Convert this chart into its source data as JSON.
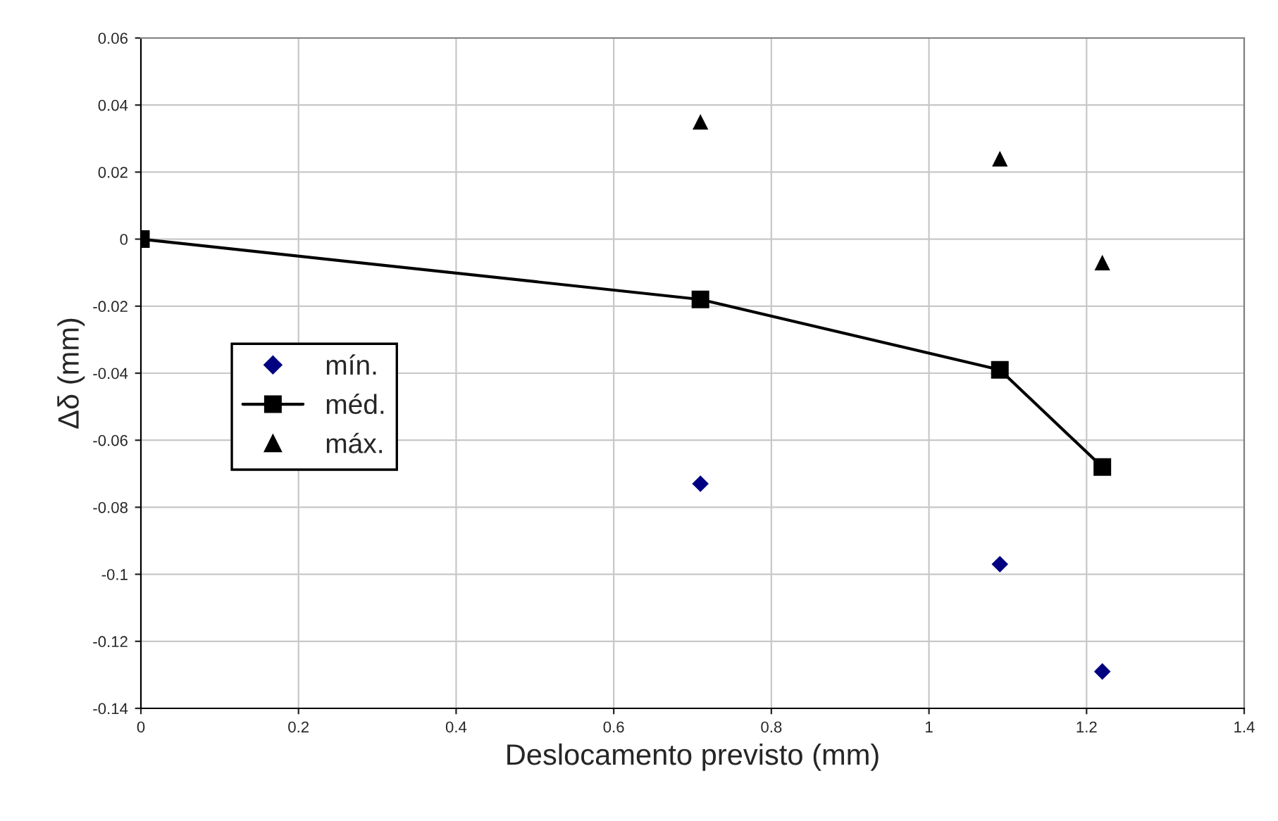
{
  "chart_data": {
    "type": "line",
    "xlabel": "Deslocamento previsto (mm)",
    "ylabel": "Δδ (mm)",
    "series": [
      {
        "name": "mín.",
        "type": "scatter",
        "marker": "diamond",
        "color": "#000080",
        "x": [
          0.71,
          1.09,
          1.22
        ],
        "values": [
          -0.073,
          -0.097,
          -0.129
        ]
      },
      {
        "name": "méd.",
        "marker": "square",
        "color": "#000000",
        "x": [
          0,
          0.71,
          1.09,
          1.22
        ],
        "values": [
          0,
          -0.018,
          -0.039,
          -0.068
        ]
      },
      {
        "name": "máx.",
        "type": "scatter",
        "marker": "triangle",
        "color": "#000000",
        "x": [
          0.71,
          1.09,
          1.22
        ],
        "values": [
          0.035,
          0.024,
          -0.007
        ]
      }
    ],
    "xlim": [
      0,
      1.4
    ],
    "xticks": [
      0,
      0.2,
      0.4,
      0.6,
      0.8,
      1,
      1.2,
      1.4
    ],
    "ylim": [
      -0.14,
      0.06
    ],
    "yticks": [
      -0.14,
      -0.12,
      -0.1,
      -0.08,
      -0.06,
      -0.04,
      -0.02,
      0,
      0.02,
      0.04,
      0.06
    ],
    "grid": true,
    "legend": "left"
  }
}
